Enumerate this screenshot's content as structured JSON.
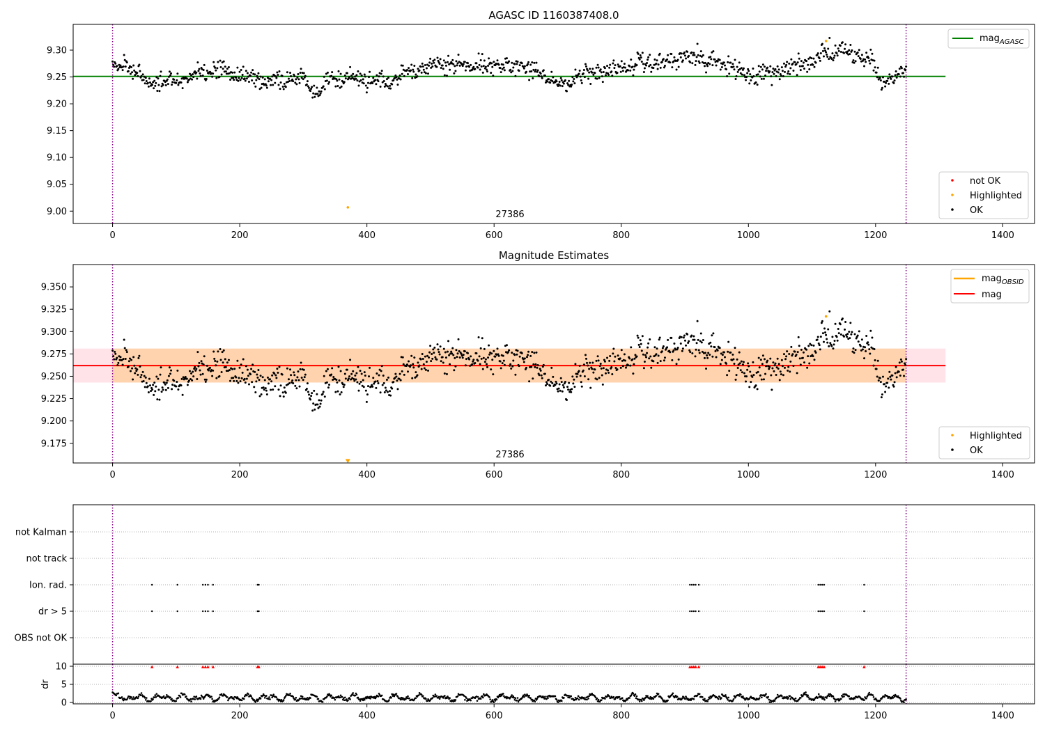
{
  "chart_data": [
    {
      "type": "scatter",
      "title": "AGASC ID 1160387408.0",
      "xlim": [
        -62,
        1450
      ],
      "ylim": [
        8.977,
        9.348
      ],
      "x_ticks": [
        0,
        200,
        400,
        600,
        800,
        1000,
        1200,
        1400
      ],
      "y_ticks": [
        9.0,
        9.05,
        9.1,
        9.15,
        9.2,
        9.25,
        9.3
      ],
      "y_tick_labels": [
        "9.00",
        "9.05",
        "9.10",
        "9.15",
        "9.20",
        "9.25",
        "9.30"
      ],
      "vlines": [
        0,
        1248
      ],
      "vline_color": "#800080",
      "obs_label": {
        "text": "27386",
        "x": 624
      },
      "lines": [
        {
          "name": "mag_AGASC_label",
          "y": 9.251,
          "x0": -62,
          "x1": 1310,
          "color": "#008000"
        }
      ],
      "series": [
        {
          "name": "not OK",
          "color": "#ff0000",
          "x": [],
          "y": []
        },
        {
          "name": "Highlighted",
          "color": "#ffa500",
          "x": [
            370,
            1122
          ],
          "y": [
            9.007,
            9.317
          ]
        },
        {
          "name": "OK",
          "color": "#000000",
          "trend": [
            [
              0,
              9.271
            ],
            [
              30,
              9.268
            ],
            [
              55,
              9.237
            ],
            [
              90,
              9.24
            ],
            [
              120,
              9.25
            ],
            [
              165,
              9.265
            ],
            [
              210,
              9.252
            ],
            [
              260,
              9.24
            ],
            [
              300,
              9.248
            ],
            [
              325,
              9.222
            ],
            [
              345,
              9.252
            ],
            [
              400,
              9.244
            ],
            [
              440,
              9.245
            ],
            [
              470,
              9.262
            ],
            [
              520,
              9.278
            ],
            [
              560,
              9.27
            ],
            [
              600,
              9.27
            ],
            [
              640,
              9.271
            ],
            [
              680,
              9.255
            ],
            [
              710,
              9.235
            ],
            [
              740,
              9.258
            ],
            [
              780,
              9.262
            ],
            [
              830,
              9.278
            ],
            [
              880,
              9.28
            ],
            [
              920,
              9.29
            ],
            [
              960,
              9.272
            ],
            [
              1010,
              9.25
            ],
            [
              1060,
              9.268
            ],
            [
              1100,
              9.278
            ],
            [
              1125,
              9.3
            ],
            [
              1160,
              9.295
            ],
            [
              1195,
              9.281
            ],
            [
              1205,
              9.25
            ],
            [
              1225,
              9.245
            ],
            [
              1248,
              9.268
            ]
          ],
          "n_points": 1100,
          "scatter": 0.011
        }
      ],
      "legend_top": {
        "position": "top-right",
        "entries": [
          {
            "label": "mag",
            "subscript": "AGASC",
            "color": "#008000"
          }
        ]
      },
      "legend_bottom": {
        "position": "bottom-right",
        "entries": [
          {
            "label": "not OK",
            "color": "#ff0000"
          },
          {
            "label": "Highlighted",
            "color": "#ffa500"
          },
          {
            "label": "OK",
            "color": "#000000"
          }
        ]
      }
    },
    {
      "type": "scatter",
      "title": "Magnitude Estimates",
      "xlim": [
        -62,
        1450
      ],
      "ylim": [
        9.153,
        9.375
      ],
      "x_ticks": [
        0,
        200,
        400,
        600,
        800,
        1000,
        1200,
        1400
      ],
      "y_ticks": [
        9.175,
        9.2,
        9.225,
        9.25,
        9.275,
        9.3,
        9.325,
        9.35
      ],
      "y_tick_labels": [
        "9.175",
        "9.200",
        "9.225",
        "9.250",
        "9.275",
        "9.300",
        "9.325",
        "9.350"
      ],
      "vlines": [
        0,
        1248
      ],
      "vline_color": "#800080",
      "obs_label": {
        "text": "27386",
        "x": 624
      },
      "bands": [
        {
          "name": "mag_band",
          "y0": 9.243,
          "y1": 9.281,
          "x0": -62,
          "x1": 1310,
          "color": "#ffc0cb",
          "opacity": 0.45
        },
        {
          "name": "obsid_band",
          "y0": 9.243,
          "y1": 9.281,
          "x0": 0,
          "x1": 1248,
          "color": "#ffa500",
          "opacity": 0.25
        }
      ],
      "lines": [
        {
          "name": "mag_OBSID",
          "y": 9.262,
          "x0": 0,
          "x1": 1248,
          "color": "#ffa500"
        },
        {
          "name": "mag",
          "y": 9.262,
          "x0": -62,
          "x1": 1310,
          "color": "#ff0000"
        }
      ],
      "markers": [
        {
          "name": "highlighted-offscale-marker",
          "x": 370,
          "y": 9.155,
          "color": "#ffa500"
        }
      ],
      "series": [
        {
          "name": "Highlighted",
          "color": "#ffa500",
          "x": [
            1122
          ],
          "y": [
            9.317
          ]
        },
        {
          "name": "OK",
          "color": "#000000",
          "same_as_panel": 0
        }
      ],
      "legend_top": {
        "position": "top-right",
        "entries": [
          {
            "label": "mag",
            "subscript": "OBSID",
            "color": "#ffa500"
          },
          {
            "label": "mag",
            "subscript": "",
            "color": "#ff0000"
          }
        ]
      },
      "legend_bottom": {
        "position": "bottom-right",
        "entries": [
          {
            "label": "Highlighted",
            "color": "#ffa500"
          },
          {
            "label": "OK",
            "color": "#000000"
          }
        ]
      }
    },
    {
      "type": "scatter",
      "title": "",
      "xlim": [
        -62,
        1450
      ],
      "x_ticks": [
        0,
        200,
        400,
        600,
        800,
        1000,
        1200,
        1400
      ],
      "categories": [
        "not Kalman",
        "not track",
        "Ion. rad.",
        "dr > 5",
        "OBS not OK"
      ],
      "vlines": [
        0,
        1248
      ],
      "vline_color": "#800080",
      "series": [
        {
          "name": "not Kalman",
          "x": []
        },
        {
          "name": "not track",
          "x": []
        },
        {
          "name": "Ion. rad.",
          "x": [
            62,
            102,
            142,
            146,
            150,
            158,
            228,
            230,
            908,
            911,
            914,
            917,
            922,
            1110,
            1113,
            1116,
            1119,
            1182
          ]
        },
        {
          "name": "dr > 5",
          "x": [
            62,
            102,
            142,
            146,
            150,
            158,
            228,
            230,
            908,
            911,
            914,
            917,
            922,
            1110,
            1113,
            1116,
            1119,
            1182
          ]
        },
        {
          "name": "OBS not OK",
          "x": []
        }
      ]
    },
    {
      "type": "line",
      "ylabel": "dr",
      "xlim": [
        -62,
        1450
      ],
      "ylim": [
        -0.5,
        10.5
      ],
      "x_ticks": [
        0,
        200,
        400,
        600,
        800,
        1000,
        1200,
        1400
      ],
      "y_ticks": [
        0,
        5,
        10
      ],
      "y_tick_labels": [
        "0",
        "5",
        "10"
      ],
      "vlines": [
        0,
        1248
      ],
      "vline_color": "#800080",
      "clipped": {
        "color": "#ff0000",
        "y": 9.8,
        "x": [
          62,
          102,
          142,
          146,
          150,
          158,
          228,
          230,
          908,
          911,
          914,
          917,
          922,
          1110,
          1113,
          1116,
          1119,
          1182
        ]
      },
      "series": [
        {
          "name": "dr",
          "color": "#000000",
          "n_points": 1100,
          "base": 1.3,
          "amplitude": 1.0,
          "start_x": 0,
          "start_y": 2.8
        }
      ]
    }
  ]
}
